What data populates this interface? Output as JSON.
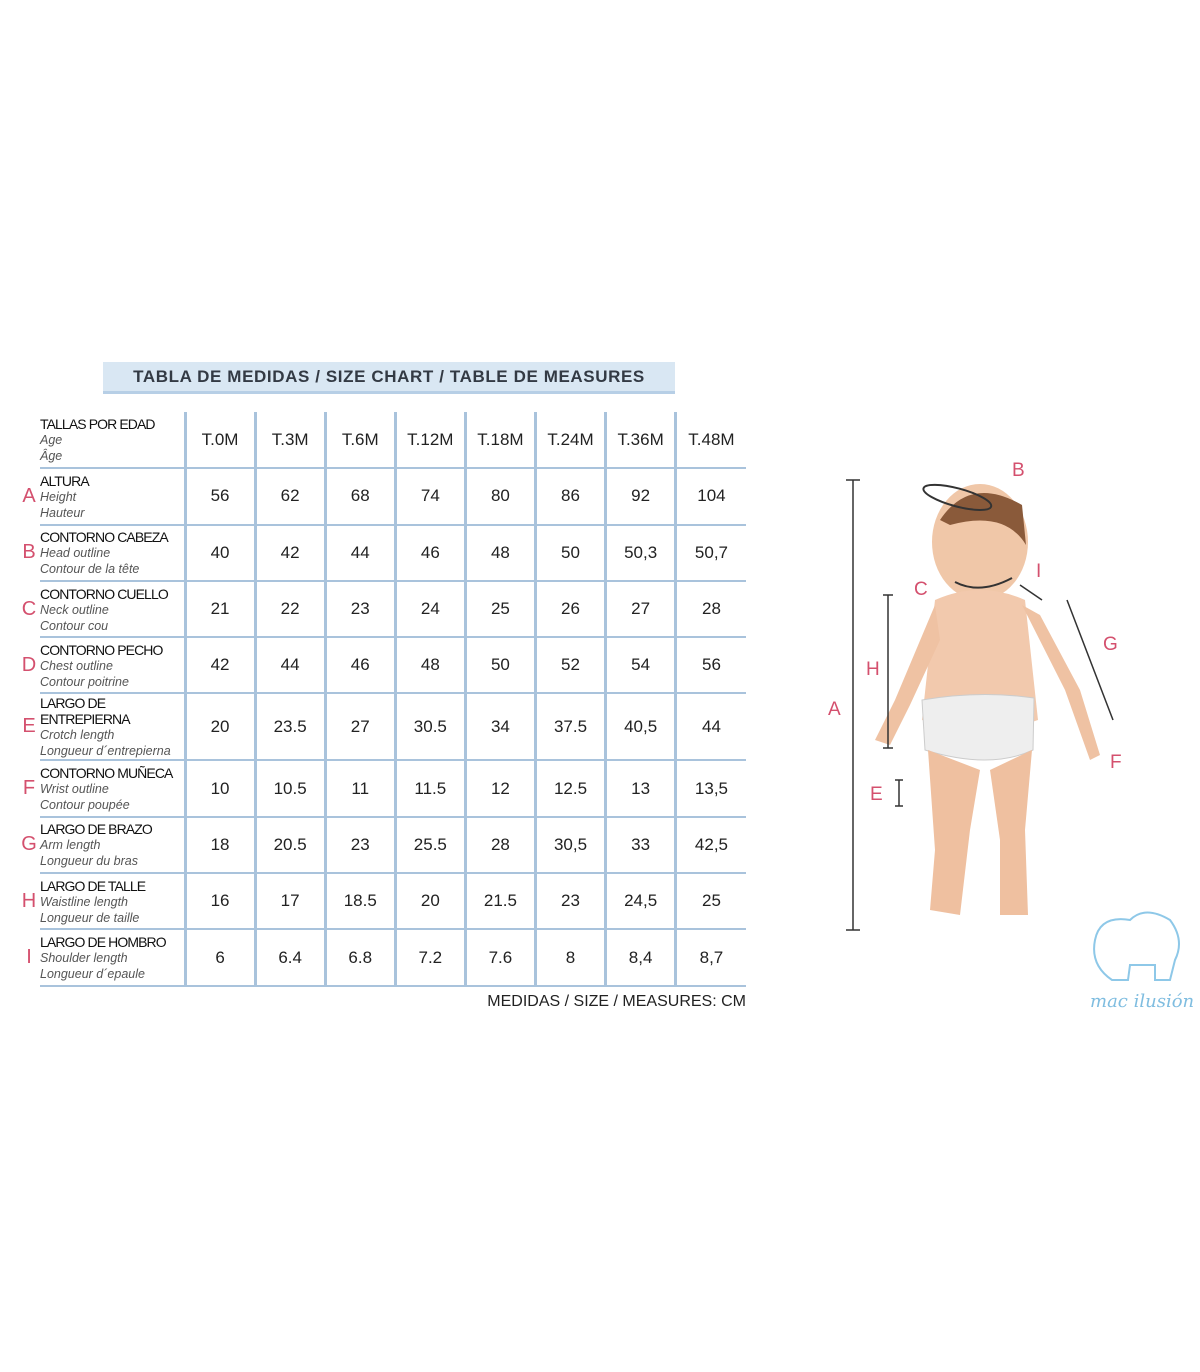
{
  "title": "TABLA DE MEDIDAS / SIZE CHART / TABLE DE MEASURES",
  "header": {
    "es": "TALLAS POR EDAD",
    "en": "Age",
    "fr": "Âge",
    "sizes": [
      "T.0M",
      "T.3M",
      "T.6M",
      "T.12M",
      "T.18M",
      "T.24M",
      "T.36M",
      "T.48M"
    ]
  },
  "rows": [
    {
      "letter": "A",
      "es": "ALTURA",
      "en": "Height",
      "fr": "Hauteur",
      "values": [
        "56",
        "62",
        "68",
        "74",
        "80",
        "86",
        "92",
        "104"
      ]
    },
    {
      "letter": "B",
      "es": "CONTORNO CABEZA",
      "en": "Head outline",
      "fr": "Contour de la tête",
      "values": [
        "40",
        "42",
        "44",
        "46",
        "48",
        "50",
        "50,3",
        "50,7"
      ]
    },
    {
      "letter": "C",
      "es": "CONTORNO CUELLO",
      "en": "Neck outline",
      "fr": "Contour cou",
      "values": [
        "21",
        "22",
        "23",
        "24",
        "25",
        "26",
        "27",
        "28"
      ]
    },
    {
      "letter": "D",
      "es": "CONTORNO PECHO",
      "en": "Chest outline",
      "fr": "Contour poitrine",
      "values": [
        "42",
        "44",
        "46",
        "48",
        "50",
        "52",
        "54",
        "56"
      ]
    },
    {
      "letter": "E",
      "es": "LARGO DE ENTREPIERNA",
      "en": "Crotch length",
      "fr": "Longueur d´entrepierna",
      "values": [
        "20",
        "23.5",
        "27",
        "30.5",
        "34",
        "37.5",
        "40,5",
        "44"
      ]
    },
    {
      "letter": "F",
      "es": "CONTORNO  MUÑECA",
      "en": "Wrist outline",
      "fr": "Contour poupée",
      "values": [
        "10",
        "10.5",
        "11",
        "11.5",
        "12",
        "12.5",
        "13",
        "13,5"
      ]
    },
    {
      "letter": "G",
      "es": "LARGO DE BRAZO",
      "en": "Arm length",
      "fr": "Longueur du bras",
      "values": [
        "18",
        "20.5",
        "23",
        "25.5",
        "28",
        "30,5",
        "33",
        "42,5"
      ]
    },
    {
      "letter": "H",
      "es": "LARGO DE TALLE",
      "en": "Waistline length",
      "fr": "Longueur de taille",
      "values": [
        "16",
        "17",
        "18.5",
        "20",
        "21.5",
        "23",
        "24,5",
        "25"
      ]
    },
    {
      "letter": "I",
      "es": "LARGO DE HOMBRO",
      "en": "Shoulder length",
      "fr": "Longueur d´epaule",
      "values": [
        "6",
        "6.4",
        "6.8",
        "7.2",
        "7.6",
        "8",
        "8,4",
        "8,7"
      ]
    }
  ],
  "unit": "MEDIDAS / SIZE / MEASURES: CM",
  "figure_letters": [
    "A",
    "B",
    "C",
    "E",
    "F",
    "G",
    "H",
    "I"
  ],
  "logo": "mac ilusión",
  "colors": {
    "accent": "#d4506e",
    "grid": "#a9c3dc",
    "title_bg": "#d9e7f3"
  }
}
